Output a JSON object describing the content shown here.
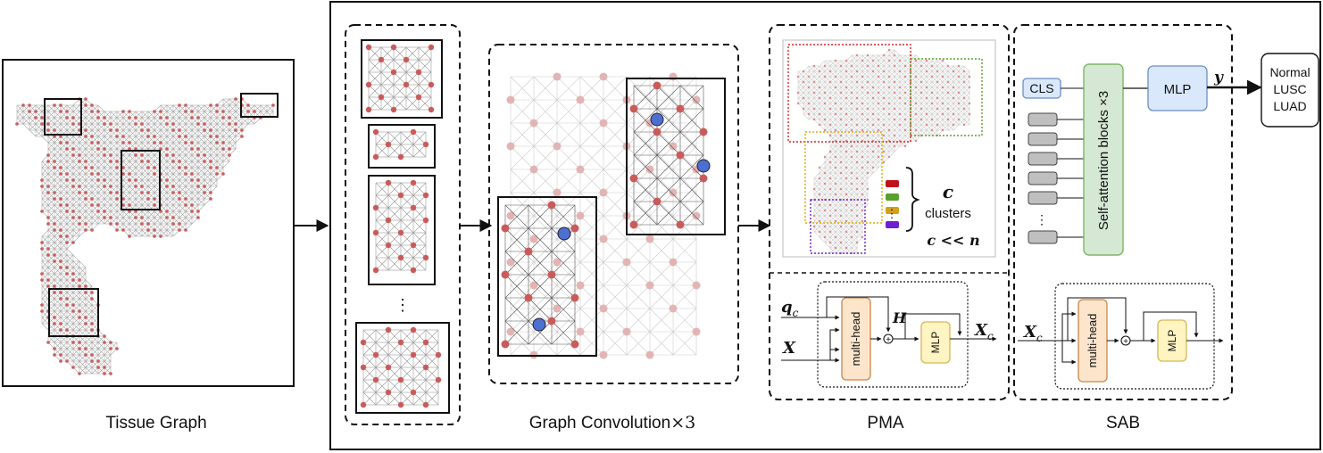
{
  "stages": {
    "tissue_graph": "Tissue Graph",
    "graph_conv": "Graph Convolution",
    "graph_conv_times": "×3",
    "pma": "PMA",
    "sab": "SAB"
  },
  "pma": {
    "c_symbol": "c",
    "clusters_label": "clusters",
    "constraint": "c << n",
    "dots": "⋮",
    "q_symbol": "q",
    "q_sub": "c",
    "x_symbol": "X",
    "h_symbol": "H",
    "out_symbol": "X",
    "out_sub": "c",
    "multihead": "multi-head",
    "mlp": "MLP",
    "plus": "+",
    "cluster_colors": [
      "#c0121b",
      "#5aa02c",
      "#d4a01a",
      "#6b1fd1"
    ]
  },
  "sab": {
    "cls": "CLS",
    "self_attention": "Self-attention blocks ×3",
    "mlp": "MLP",
    "y": "y",
    "dots": "⋮",
    "in_symbol": "X",
    "in_sub": "c",
    "multihead": "multi-head",
    "mlp_small": "MLP",
    "plus": "+"
  },
  "subgraphs_dots": "⋮",
  "outputs": [
    "Normal",
    "LUSC",
    "LUAD"
  ],
  "colors": {
    "node": "#c95b5b",
    "node_faded": "#e2b4b4",
    "edge": "#b0b0b0",
    "blue_node": "#4d6fd0",
    "box_orange": "#fde5cc",
    "box_yellow": "#fff4c2",
    "box_green": "#d5e8d4",
    "box_blue": "#dae8fc"
  }
}
